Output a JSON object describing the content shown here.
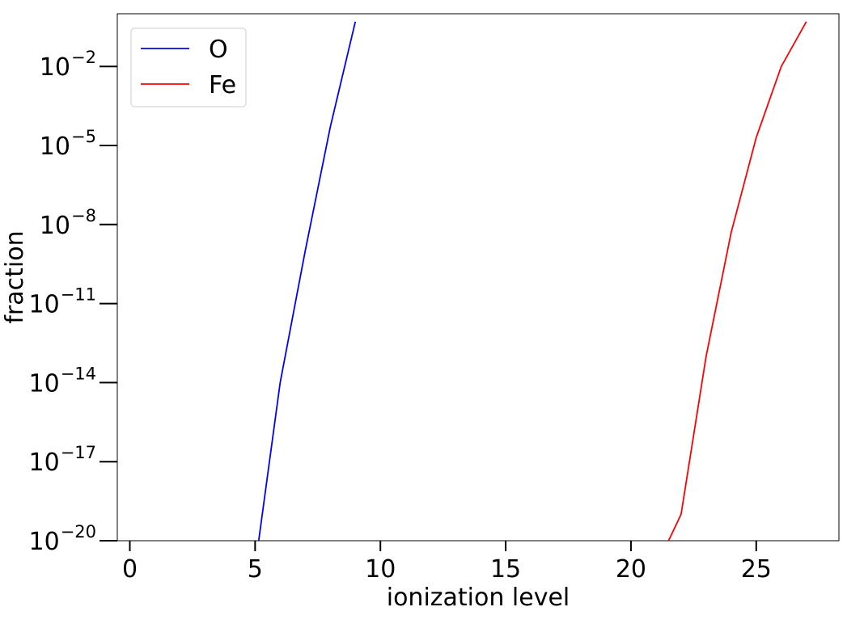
{
  "chart_data": {
    "type": "line",
    "xlabel": "ionization level",
    "ylabel": "fraction",
    "x_scale": "linear",
    "y_scale": "log",
    "xlim": [
      -0.5,
      28.3
    ],
    "ylim": [
      1e-20,
      1
    ],
    "x_ticks": [
      0,
      5,
      10,
      15,
      20,
      25
    ],
    "y_ticks": [
      {
        "base": "10",
        "exp": "−2",
        "value": 0.01
      },
      {
        "base": "10",
        "exp": "−5",
        "value": 1e-05
      },
      {
        "base": "10",
        "exp": "−8",
        "value": 1e-08
      },
      {
        "base": "10",
        "exp": "−11",
        "value": 1e-11
      },
      {
        "base": "10",
        "exp": "−14",
        "value": 1e-14
      },
      {
        "base": "10",
        "exp": "−17",
        "value": 1e-17
      },
      {
        "base": "10",
        "exp": "−20",
        "value": 1e-20
      }
    ],
    "grid": false,
    "legend_position": "top-left",
    "series": [
      {
        "name": "O",
        "color": "#0000ff",
        "points": [
          {
            "x": 5.0,
            "y": 1e-21
          },
          {
            "x": 6,
            "y": 1e-14
          },
          {
            "x": 7,
            "y": 1e-09
          },
          {
            "x": 8,
            "y": 5e-05
          },
          {
            "x": 9,
            "y": 0.5
          }
        ]
      },
      {
        "name": "Fe",
        "color": "#ff0000",
        "points": [
          {
            "x": 21.5,
            "y": 1e-20
          },
          {
            "x": 22,
            "y": 1e-19
          },
          {
            "x": 23,
            "y": 1e-13
          },
          {
            "x": 24,
            "y": 5e-09
          },
          {
            "x": 25,
            "y": 2e-05
          },
          {
            "x": 26,
            "y": 0.01
          },
          {
            "x": 27,
            "y": 0.5
          }
        ]
      }
    ]
  }
}
